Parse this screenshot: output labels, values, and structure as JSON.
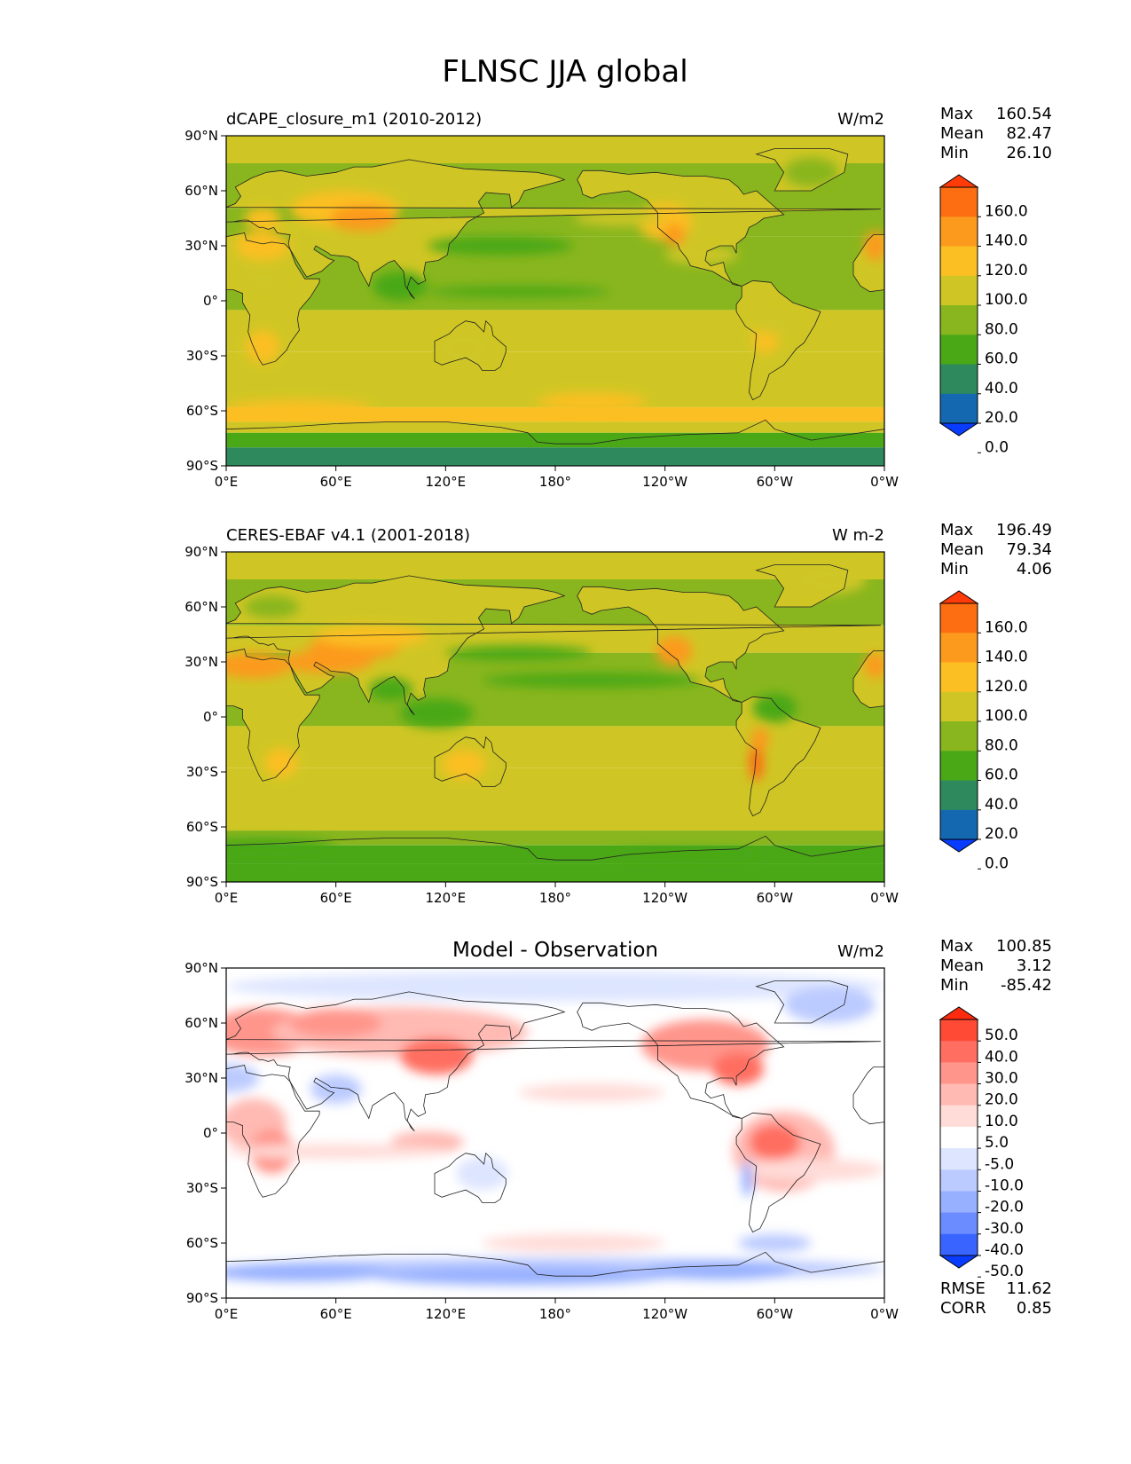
{
  "figure": {
    "title": "FLNSC JJA global"
  },
  "axes": {
    "lat_ticks": [
      "90°N",
      "60°N",
      "30°N",
      "0°",
      "30°S",
      "60°S",
      "90°S"
    ],
    "lon_ticks": [
      "0°E",
      "60°E",
      "120°E",
      "180°",
      "120°W",
      "60°W",
      "0°W"
    ]
  },
  "colors": {
    "abs": [
      "#0a3cff",
      "#1468b0",
      "#2e8a5c",
      "#4aa817",
      "#89b61e",
      "#cfc625",
      "#fbbf23",
      "#fc9a1d",
      "#fd6e12",
      "#ff3b0a"
    ],
    "diff": [
      "#0a3cff",
      "#3a64ff",
      "#6a8cff",
      "#97b0ff",
      "#bccbff",
      "#dde5ff",
      "#ffffff",
      "#ffdcd8",
      "#ffbab3",
      "#ff958b",
      "#ff6e61",
      "#ff4a36",
      "#ff2b0f"
    ],
    "coast": "#222222"
  },
  "panels": [
    {
      "left_label": "dCAPE_closure_m1 (2010-2012)",
      "center_label": "",
      "units": "W/m2",
      "stats": {
        "max_label": "Max",
        "max": "160.54",
        "mean_label": "Mean",
        "mean": "82.47",
        "min_label": "Min",
        "min": "26.10"
      },
      "colorbar_labels": [
        "160.0",
        "140.0",
        "120.0",
        "100.0",
        "80.0",
        "60.0",
        "40.0",
        "20.0",
        "0.0"
      ]
    },
    {
      "left_label": "CERES-EBAF v4.1 (2001-2018)",
      "center_label": "",
      "units": "W m-2",
      "stats": {
        "max_label": "Max",
        "max": "196.49",
        "mean_label": "Mean",
        "mean": "79.34",
        "min_label": "Min",
        "min": "4.06"
      },
      "colorbar_labels": [
        "160.0",
        "140.0",
        "120.0",
        "100.0",
        "80.0",
        "60.0",
        "40.0",
        "20.0",
        "0.0"
      ]
    },
    {
      "left_label": "",
      "center_label": "Model - Observation",
      "units": "W/m2",
      "stats": {
        "max_label": "Max",
        "max": "100.85",
        "mean_label": "Mean",
        "mean": "3.12",
        "min_label": "Min",
        "min": "-85.42"
      },
      "colorbar_labels": [
        "50.0",
        "40.0",
        "30.0",
        "20.0",
        "10.0",
        "5.0",
        "-5.0",
        "-10.0",
        "-20.0",
        "-30.0",
        "-40.0",
        "-50.0"
      ],
      "extra": {
        "rmse_label": "RMSE",
        "rmse": "11.62",
        "corr_label": "CORR",
        "corr": "0.85"
      }
    }
  ],
  "chart_data": [
    {
      "type": "heatmap",
      "variable": "FLNSC JJA global",
      "dataset": "dCAPE_closure_m1 (2010-2012)",
      "units": "W/m2",
      "xlim": [
        0,
        360
      ],
      "ylim": [
        -90,
        90
      ],
      "levels": [
        0,
        20,
        40,
        60,
        80,
        100,
        120,
        140,
        160
      ],
      "max": 160.54,
      "mean": 82.47,
      "min": 26.1
    },
    {
      "type": "heatmap",
      "variable": "FLNSC JJA global",
      "dataset": "CERES-EBAF v4.1 (2001-2018)",
      "units": "W m-2",
      "xlim": [
        0,
        360
      ],
      "ylim": [
        -90,
        90
      ],
      "levels": [
        0,
        20,
        40,
        60,
        80,
        100,
        120,
        140,
        160
      ],
      "max": 196.49,
      "mean": 79.34,
      "min": 4.06
    },
    {
      "type": "heatmap",
      "variable": "FLNSC JJA global",
      "dataset": "Model - Observation",
      "units": "W/m2",
      "xlim": [
        0,
        360
      ],
      "ylim": [
        -90,
        90
      ],
      "levels": [
        -50,
        -40,
        -30,
        -20,
        -10,
        -5,
        5,
        10,
        20,
        30,
        40,
        50
      ],
      "max": 100.85,
      "mean": 3.12,
      "min": -85.42,
      "rmse": 11.62,
      "corr": 0.85
    }
  ]
}
